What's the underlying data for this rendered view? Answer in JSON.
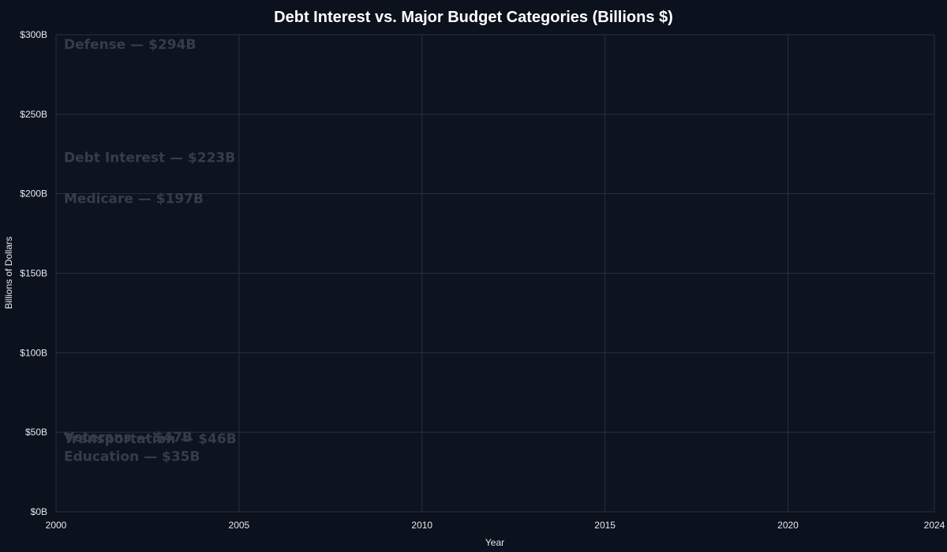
{
  "chart_data": {
    "type": "line",
    "title": "Debt Interest vs. Major Budget Categories (Billions $)",
    "xlabel": "Year",
    "ylabel": "Billions of Dollars",
    "xlim": [
      2000,
      2024
    ],
    "ylim": [
      0,
      300
    ],
    "x_ticks": [
      2000,
      2005,
      2010,
      2015,
      2020,
      2024
    ],
    "x_tick_labels": [
      "2000",
      "2005",
      "2010",
      "2015",
      "2020",
      "2024"
    ],
    "y_ticks": [
      0,
      50,
      100,
      150,
      200,
      250,
      300
    ],
    "y_tick_labels": [
      "$0B",
      "$50B",
      "$100B",
      "$150B",
      "$200B",
      "$250B",
      "$300B"
    ],
    "grid": true,
    "series": [],
    "annotations": [
      {
        "text": "Defense — $294B",
        "value": 294
      },
      {
        "text": "Debt Interest — $223B",
        "value": 223
      },
      {
        "text": "Medicare — $197B",
        "value": 197
      },
      {
        "text": "Veterans — $47B",
        "value": 47
      },
      {
        "text": "Transportation — $46B",
        "value": 46
      },
      {
        "text": "Education — $35B",
        "value": 35
      }
    ]
  },
  "colors": {
    "background": "#0b111d",
    "plot_background": "#0d1320",
    "grid": "#283141",
    "text": "#ffffff",
    "tick_text": "#e6e8ec",
    "annotation_text": "#353d4b"
  }
}
